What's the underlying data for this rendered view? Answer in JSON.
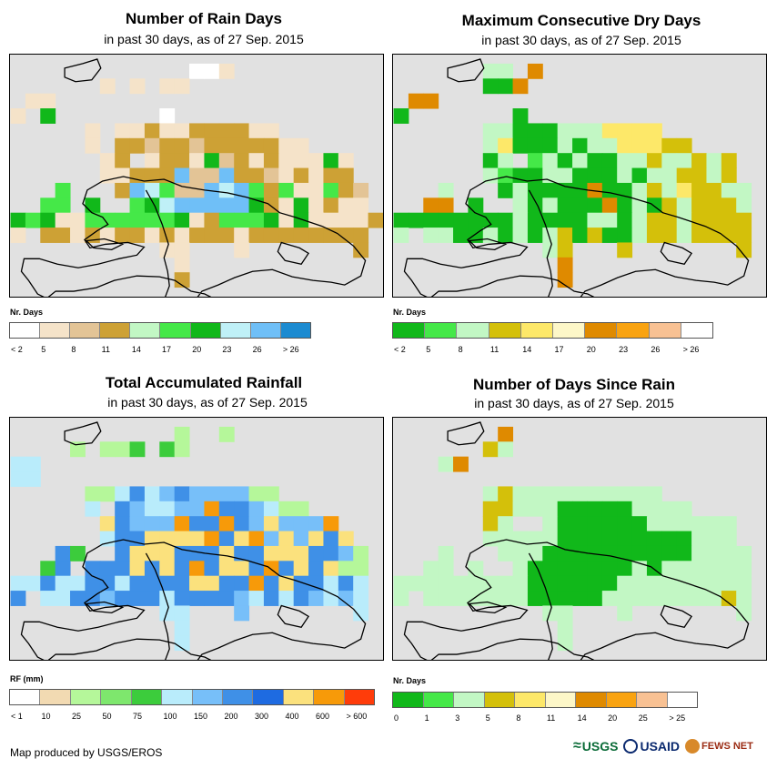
{
  "panels": [
    {
      "title": "Number of Rain Days",
      "subtitle": "in past 30 days, as of 27 Sep. 2015",
      "legend_title": "Nr. Days",
      "legend_colors": [
        "#ffffff",
        "#f5e3c9",
        "#e3c496",
        "#cda135",
        "#c2f7c4",
        "#45e848",
        "#11b81a",
        "#bff0f7",
        "#6fbff7",
        "#1c8bd1"
      ],
      "legend_labels": [
        "< 2",
        "5",
        "8",
        "11",
        "14",
        "17",
        "20",
        "23",
        "26",
        "> 26"
      ],
      "grid": [
        "............WWL.........",
        "......L.L.LL............",
        ".LL.....................",
        "L.F.......W.............",
        ".....L.LLMLLMMMMLL......",
        ".....L.MMNMMCMMMMMLL....",
        "......LM.LMMLFCMLMLLLFL.",
        "......LLMMMHCCHMMCLMLMM.",
        "...G...MHEGCCHEHGMGLLGMC",
        "..GG.F..GFIHHHHHFMLFLMLL",
        "FGFLLGGGGGGFLDGGGFLFLLLLM",
        "L.MMLMLMMLMLMMMLMMMMMMMM",
        "..........LL...L.......M",
        "...........L............",
        "...........M............"
      ]
    },
    {
      "title": "Maximum Consecutive Dry Days",
      "subtitle": "in past 30 days, as of 27 Sep. 2015",
      "legend_title": "Nr. Days",
      "legend_colors": [
        "#11b81a",
        "#45e848",
        "#c2f7c4",
        "#d4c00a",
        "#fde869",
        "#fdf7c8",
        "#df8a00",
        "#f9a311",
        "#f8c193",
        "#ffffff"
      ],
      "legend_labels": [
        "< 2",
        "5",
        "8",
        "11",
        "14",
        "17",
        "20",
        "23",
        "26",
        "> 26"
      ],
      "grid": [
        "......NN.F..............",
        "......GGF...............",
        ".FP.....................",
        "G.......H...............",
        "......NNHHHNNNOOOO......",
        "......NOGGGNGNNOOOQQ....",
        "......GN.LNGNGGNNQNNQNQ.",
        "......NLGGNNGGGNGNNQQNQ.",
        "...N...GNGGGGFGGNQNOQQNN",
        "..FF.G..NGNGGGFGNGQNQQQN",
        "GGGGGGGGNGGGGNNGNQQNQQQQ",
        "N.NNGGNGNGNQGQGGNQQNQQQQ",
        "..........NQ...Q.......Q",
        "...........P............",
        "...........P............"
      ]
    },
    {
      "title": "Total Accumulated Rainfall",
      "subtitle": "in past 30 days, as of 27 Sep. 2015",
      "legend_title": "RF (mm)",
      "legend_colors": [
        "#ffffff",
        "#f2dab2",
        "#b5f79a",
        "#7ee76d",
        "#3ccc3c",
        "#b9ecfb",
        "#77bff9",
        "#3f90e7",
        "#1e6be1",
        "#fbe17d",
        "#f79a09",
        "#ff3c0a"
      ],
      "legend_labels": [
        "< 1",
        "10",
        "25",
        "50",
        "75",
        "100",
        "150",
        "200",
        "300",
        "400",
        "600",
        "> 600"
      ],
      "grid": [
        "...........R..R.........",
        "....R.RRG.GR............",
        "TT......................",
        "TT......................",
        ".....RRTXTUXUUUURR......",
        ".....T.XUTTUUWXXUTRR....",
        "......VXUUUWXXWXUVUUUW..",
        "......TXXVVVVWXVWUVUVXV.",
        "...XG..XVVVXXXVXXVVVXXUR",
        "..GX.XXXVXVXWXVVXWXVXVRR",
        "TTXTTXXTXXXXVVXXWXVXXTXT",
        "X.TTXXUXXXTXXXXUTXTXUTUT",
        "..........TT...U.......T",
        "...........T............",
        "...........T............"
      ]
    },
    {
      "title": "Number of Days Since Rain",
      "subtitle": "in past 30 days, as of 27 Sep. 2015",
      "legend_title": "Nr. Days",
      "legend_colors": [
        "#11b81a",
        "#45e848",
        "#c2f7c4",
        "#d4c00a",
        "#fde869",
        "#fdf7c8",
        "#df8a00",
        "#f9a311",
        "#f8c193",
        "#ffffff"
      ],
      "legend_labels": [
        "0",
        "1",
        "3",
        "5",
        "8",
        "11",
        "14",
        "20",
        "25",
        "> 25"
      ],
      "grid": [
        ".......P................",
        "......OQ................",
        "...QP...................",
        "........................",
        "......QOQQQQQQQQQQ......",
        "......OOQQQGGGGGQQQQ....",
        "......OQ..QGGGGGGQQQQQQ.",
        "......QQQQQGGGGGGGGGQQQ.",
        "...Q...QQQGGGGGGGGGGQQQQ",
        "..QQ.Q..QGGGGGGGQGQQQQQQ",
        "QQQQQQQQQGGGGGGQQQQQQQQQ",
        "Q.QQQQQQQGGGGGQQQQQQQQOQ",
        "..........QQ...Q.......Q",
        "...........Q............",
        "...........Q............"
      ]
    }
  ],
  "footer": {
    "credit": "Map produced by USGS/EROS",
    "logos": [
      "USGS",
      "USAID",
      "FEWS NET"
    ]
  }
}
